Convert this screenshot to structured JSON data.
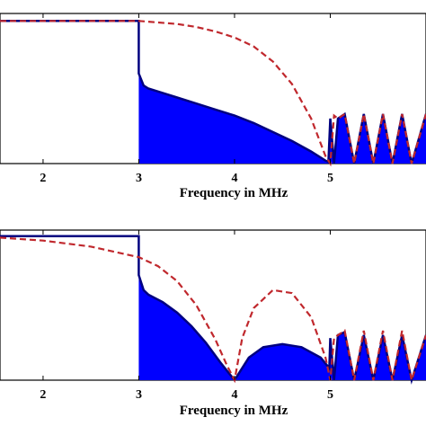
{
  "chart_data": [
    {
      "type": "area",
      "xlabel": "Frequency in MHz",
      "ylabel": "",
      "title": "",
      "xlim": [
        1.55,
        6.0
      ],
      "ylim": [
        0,
        1.0
      ],
      "xticks": [
        2,
        3,
        4,
        5
      ],
      "x_tick_labels": [
        "2",
        "3",
        "4",
        "5"
      ],
      "grid": false,
      "legend": "none",
      "series": [
        {
          "style": "filled-spectrum",
          "color": "#0000ff",
          "outline_color": "#000080",
          "x": [
            1.55,
            2.99,
            3.0,
            3.0,
            3.05,
            3.1,
            3.2,
            3.4,
            3.6,
            3.8,
            4.0,
            4.2,
            4.4,
            4.6,
            4.8,
            4.95,
            4.98,
            5.0,
            5.04,
            5.08,
            5.15,
            5.25,
            5.35,
            5.45,
            5.55,
            5.65,
            5.75,
            5.85,
            6.0
          ],
          "values": [
            0.95,
            0.95,
            0.95,
            0.6,
            0.52,
            0.5,
            0.48,
            0.44,
            0.4,
            0.36,
            0.32,
            0.27,
            0.21,
            0.15,
            0.08,
            0.02,
            0.01,
            0.3,
            0.0,
            0.3,
            0.33,
            0.0,
            0.33,
            0.0,
            0.33,
            0.0,
            0.33,
            0.0,
            0.33
          ]
        },
        {
          "style": "dashed",
          "color": "#c0282d",
          "x": [
            1.55,
            2.0,
            2.5,
            3.0,
            3.2,
            3.4,
            3.6,
            3.8,
            4.0,
            4.2,
            4.4,
            4.6,
            4.8,
            4.95,
            5.0,
            5.04,
            5.08,
            5.15,
            5.25,
            5.35,
            5.45,
            5.55,
            5.65,
            5.75,
            5.85,
            6.0
          ],
          "values": [
            0.95,
            0.95,
            0.95,
            0.95,
            0.94,
            0.93,
            0.91,
            0.88,
            0.84,
            0.78,
            0.68,
            0.53,
            0.3,
            0.05,
            0.0,
            0.32,
            0.3,
            0.33,
            0.0,
            0.33,
            0.0,
            0.33,
            0.0,
            0.33,
            0.0,
            0.33
          ]
        }
      ]
    },
    {
      "type": "area",
      "xlabel": "Frequency in MHz",
      "ylabel": "",
      "title": "",
      "xlim": [
        1.55,
        6.0
      ],
      "ylim": [
        0,
        1.0
      ],
      "xticks": [
        2,
        3,
        4,
        5
      ],
      "x_tick_labels": [
        "2",
        "3",
        "4",
        "5"
      ],
      "grid": false,
      "legend": "none",
      "series": [
        {
          "style": "filled-spectrum",
          "color": "#0000ff",
          "outline_color": "#000080",
          "x": [
            1.55,
            2.99,
            3.0,
            3.0,
            3.05,
            3.1,
            3.25,
            3.4,
            3.55,
            3.7,
            3.85,
            3.95,
            4.0,
            4.05,
            4.15,
            4.3,
            4.5,
            4.7,
            4.9,
            4.99,
            5.0,
            5.04,
            5.08,
            5.15,
            5.25,
            5.35,
            5.45,
            5.55,
            5.65,
            5.75,
            5.85,
            6.0
          ],
          "values": [
            0.96,
            0.96,
            0.96,
            0.7,
            0.6,
            0.57,
            0.52,
            0.45,
            0.36,
            0.25,
            0.12,
            0.04,
            0.0,
            0.05,
            0.15,
            0.22,
            0.24,
            0.22,
            0.15,
            0.08,
            0.28,
            0.0,
            0.3,
            0.32,
            0.0,
            0.3,
            0.0,
            0.3,
            0.0,
            0.3,
            0.0,
            0.3
          ]
        },
        {
          "style": "dashed",
          "color": "#c0282d",
          "x": [
            1.55,
            2.0,
            2.5,
            3.0,
            3.2,
            3.4,
            3.6,
            3.8,
            3.92,
            4.0,
            4.08,
            4.2,
            4.4,
            4.6,
            4.8,
            4.95,
            5.0,
            5.04,
            5.08,
            5.15,
            5.25,
            5.35,
            5.45,
            5.55,
            5.65,
            5.75,
            5.85,
            6.0
          ],
          "values": [
            0.95,
            0.93,
            0.89,
            0.82,
            0.76,
            0.66,
            0.5,
            0.27,
            0.1,
            0.0,
            0.28,
            0.48,
            0.6,
            0.58,
            0.42,
            0.15,
            0.0,
            0.28,
            0.3,
            0.33,
            0.0,
            0.33,
            0.0,
            0.33,
            0.0,
            0.33,
            0.0,
            0.3
          ]
        }
      ]
    }
  ]
}
